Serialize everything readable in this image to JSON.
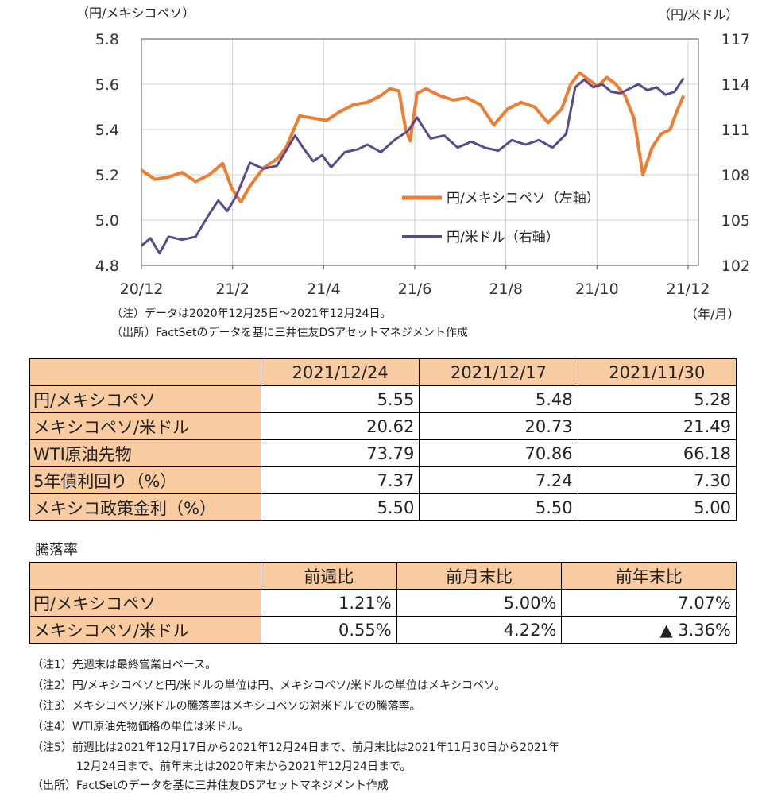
{
  "chart_data": {
    "type": "line",
    "left_axis_unit": "（円/メキシコペソ）",
    "right_axis_unit": "（円/米ドル）",
    "x_axis_unit": "（年/月）",
    "x_ticks": [
      "20/12",
      "21/2",
      "21/4",
      "21/6",
      "21/8",
      "21/10",
      "21/12"
    ],
    "y_left_ticks": [
      "5.8",
      "5.6",
      "5.4",
      "5.2",
      "5.0",
      "4.8"
    ],
    "y_right_ticks": [
      "117",
      "114",
      "111",
      "108",
      "105",
      "102"
    ],
    "ylim_left": [
      4.8,
      5.8
    ],
    "ylim_right": [
      102,
      117
    ],
    "xlim": [
      0,
      12.1
    ],
    "colors": {
      "peso": "#ed7d31",
      "usd": "#5b4a8b"
    },
    "series": [
      {
        "name": "円/メキシコペソ（左軸）",
        "axis": "left",
        "x": [
          0.0,
          0.3,
          0.6,
          0.9,
          1.2,
          1.5,
          1.8,
          2.0,
          2.2,
          2.4,
          2.7,
          3.0,
          3.2,
          3.5,
          3.8,
          4.1,
          4.4,
          4.7,
          5.0,
          5.3,
          5.5,
          5.7,
          5.85,
          5.95,
          6.1,
          6.3,
          6.6,
          6.9,
          7.2,
          7.5,
          7.8,
          8.1,
          8.4,
          8.7,
          9.0,
          9.3,
          9.5,
          9.7,
          9.9,
          10.1,
          10.3,
          10.5,
          10.7,
          10.9,
          11.1,
          11.3,
          11.5,
          11.7,
          11.85,
          12.0
        ],
        "y": [
          5.22,
          5.18,
          5.19,
          5.21,
          5.17,
          5.2,
          5.25,
          5.14,
          5.08,
          5.15,
          5.23,
          5.27,
          5.32,
          5.46,
          5.45,
          5.44,
          5.48,
          5.51,
          5.52,
          5.55,
          5.58,
          5.57,
          5.4,
          5.35,
          5.56,
          5.58,
          5.55,
          5.53,
          5.54,
          5.51,
          5.42,
          5.49,
          5.52,
          5.5,
          5.43,
          5.49,
          5.6,
          5.65,
          5.62,
          5.59,
          5.63,
          5.6,
          5.55,
          5.45,
          5.2,
          5.32,
          5.38,
          5.4,
          5.48,
          5.55
        ]
      },
      {
        "name": "円/米ドル（右軸）",
        "axis": "right",
        "x": [
          0.0,
          0.2,
          0.4,
          0.6,
          0.9,
          1.2,
          1.5,
          1.7,
          1.9,
          2.1,
          2.4,
          2.7,
          3.0,
          3.2,
          3.4,
          3.6,
          3.8,
          4.0,
          4.2,
          4.5,
          4.8,
          5.0,
          5.3,
          5.6,
          5.9,
          6.1,
          6.4,
          6.7,
          7.0,
          7.3,
          7.6,
          7.9,
          8.2,
          8.5,
          8.8,
          9.1,
          9.4,
          9.6,
          9.8,
          10.0,
          10.2,
          10.4,
          10.6,
          10.8,
          11.0,
          11.2,
          11.4,
          11.6,
          11.8,
          12.0
        ],
        "y": [
          103.3,
          103.8,
          102.8,
          103.9,
          103.7,
          103.9,
          105.4,
          106.3,
          105.6,
          106.6,
          108.8,
          108.4,
          108.6,
          109.6,
          110.6,
          109.7,
          108.9,
          109.3,
          108.5,
          109.5,
          109.7,
          110.0,
          109.5,
          110.3,
          110.9,
          111.8,
          110.4,
          110.6,
          109.8,
          110.2,
          109.8,
          109.6,
          110.3,
          110.0,
          110.3,
          109.8,
          110.7,
          113.8,
          114.3,
          113.8,
          114.0,
          113.5,
          113.4,
          113.7,
          114.0,
          113.6,
          113.8,
          113.3,
          113.5,
          114.4
        ]
      }
    ]
  },
  "chart_notes": {
    "note1": "（注）データは2020年12月25日～2021年12月24日。",
    "note2": "（出所）FactSetのデータを基に三井住友DSアセットマネジメント作成"
  },
  "table1": {
    "headers": [
      "2021/12/24",
      "2021/12/17",
      "2021/11/30"
    ],
    "rows": [
      {
        "label": "円/メキシコペソ",
        "values": [
          "5.55",
          "5.48",
          "5.28"
        ]
      },
      {
        "label": "メキシコペソ/米ドル",
        "values": [
          "20.62",
          "20.73",
          "21.49"
        ]
      },
      {
        "label": "WTI原油先物",
        "values": [
          "73.79",
          "70.86",
          "66.18"
        ]
      },
      {
        "label": "5年債利回り（%）",
        "values": [
          "7.37",
          "7.24",
          "7.30"
        ]
      },
      {
        "label": "メキシコ政策金利（%）",
        "values": [
          "5.50",
          "5.50",
          "5.00"
        ]
      }
    ]
  },
  "section_label": "騰落率",
  "table2": {
    "headers": [
      "前週比",
      "前月末比",
      "前年末比"
    ],
    "rows": [
      {
        "label": "円/メキシコペソ",
        "values": [
          "1.21%",
          "5.00%",
          "7.07%"
        ]
      },
      {
        "label": "メキシコペソ/米ドル",
        "values": [
          "0.55%",
          "4.22%",
          "▲ 3.36%"
        ]
      }
    ]
  },
  "footnotes": [
    "（注1）先週末は最終営業日ベース。",
    "（注2）円/メキシコペソと円/米ドルの単位は円、メキシコペソ/米ドルの単位はメキシコペソ。",
    "（注3）メキシコペソ/米ドルの騰落率はメキシコペソの対米ドルでの騰落率。",
    "（注4）WTI原油先物価格の単位は米ドル。",
    "（注5）前週比は2021年12月17日から2021年12月24日まで、前月末比は2021年11月30日から2021年",
    "　　　　12月24日まで、前年末比は2020年末から2021年12月24日まで。",
    "（出所）FactSetのデータを基に三井住友DSアセットマネジメント作成"
  ]
}
